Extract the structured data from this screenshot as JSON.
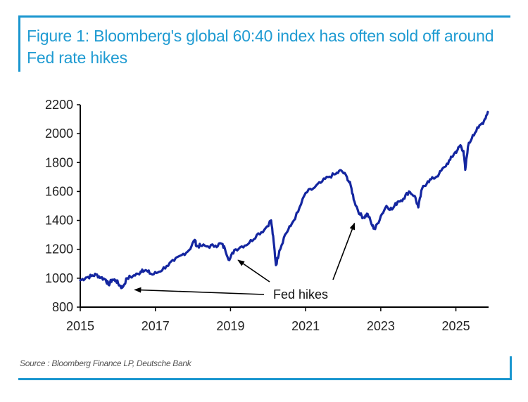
{
  "figure": {
    "title": "Figure 1: Bloomberg's global 60:40 index has often sold off around Fed rate hikes",
    "source": "Source : Bloomberg Finance LP, Deutsche Bank",
    "accent_color": "#1a96cf",
    "line_color": "#1426a0"
  },
  "chart_data": {
    "type": "line",
    "title": "Figure 1: Bloomberg's global 60:40 index has often sold off around Fed rate hikes",
    "xlabel": "",
    "ylabel": "",
    "xlim": [
      2015,
      2025.87
    ],
    "ylim": [
      800,
      2200
    ],
    "grid": false,
    "legend": "none",
    "x_ticks": [
      "2015",
      "2017",
      "2019",
      "2021",
      "2023",
      "2025"
    ],
    "y_ticks": [
      "800",
      "1000",
      "1200",
      "1400",
      "1600",
      "1800",
      "2000",
      "2200"
    ],
    "series": [
      {
        "name": "Bloomberg global 60:40 index",
        "x": [
          2015.0,
          2015.15,
          2015.3,
          2015.42,
          2015.55,
          2015.68,
          2015.75,
          2015.85,
          2015.95,
          2016.05,
          2016.12,
          2016.25,
          2016.4,
          2016.55,
          2016.65,
          2016.8,
          2016.92,
          2017.1,
          2017.3,
          2017.5,
          2017.7,
          2017.9,
          2018.05,
          2018.1,
          2018.2,
          2018.4,
          2018.6,
          2018.75,
          2018.85,
          2018.97,
          2019.1,
          2019.3,
          2019.5,
          2019.7,
          2019.9,
          2020.08,
          2020.15,
          2020.21,
          2020.3,
          2020.45,
          2020.6,
          2020.8,
          2021.0,
          2021.2,
          2021.4,
          2021.6,
          2021.8,
          2021.95,
          2022.1,
          2022.2,
          2022.3,
          2022.45,
          2022.55,
          2022.65,
          2022.78,
          2022.85,
          2023.0,
          2023.15,
          2023.3,
          2023.45,
          2023.6,
          2023.75,
          2023.9,
          2024.0,
          2024.1,
          2024.25,
          2024.4,
          2024.55,
          2024.7,
          2024.85,
          2024.95,
          2025.05,
          2025.12,
          2025.2,
          2025.25,
          2025.32,
          2025.45,
          2025.6,
          2025.75,
          2025.85
        ],
        "values": [
          985,
          1005,
          1015,
          1025,
          1005,
          990,
          955,
          990,
          985,
          950,
          935,
          1000,
          1015,
          1030,
          1060,
          1045,
          1025,
          1045,
          1085,
          1120,
          1160,
          1195,
          1265,
          1220,
          1225,
          1220,
          1225,
          1240,
          1205,
          1125,
          1195,
          1220,
          1245,
          1300,
          1335,
          1400,
          1250,
          1090,
          1190,
          1300,
          1360,
          1460,
          1590,
          1620,
          1660,
          1700,
          1720,
          1745,
          1700,
          1640,
          1530,
          1440,
          1420,
          1445,
          1360,
          1340,
          1430,
          1500,
          1475,
          1530,
          1550,
          1600,
          1570,
          1490,
          1620,
          1670,
          1690,
          1720,
          1770,
          1820,
          1860,
          1890,
          1920,
          1880,
          1750,
          1910,
          1990,
          2040,
          2090,
          2150
        ]
      }
    ],
    "annotations": [
      {
        "text": "Fed hikes",
        "points_to": [
          {
            "x": 2016.45,
            "y": 920
          },
          {
            "x": 2019.2,
            "y": 1125
          },
          {
            "x": 2022.3,
            "y": 1380
          }
        ]
      }
    ]
  }
}
